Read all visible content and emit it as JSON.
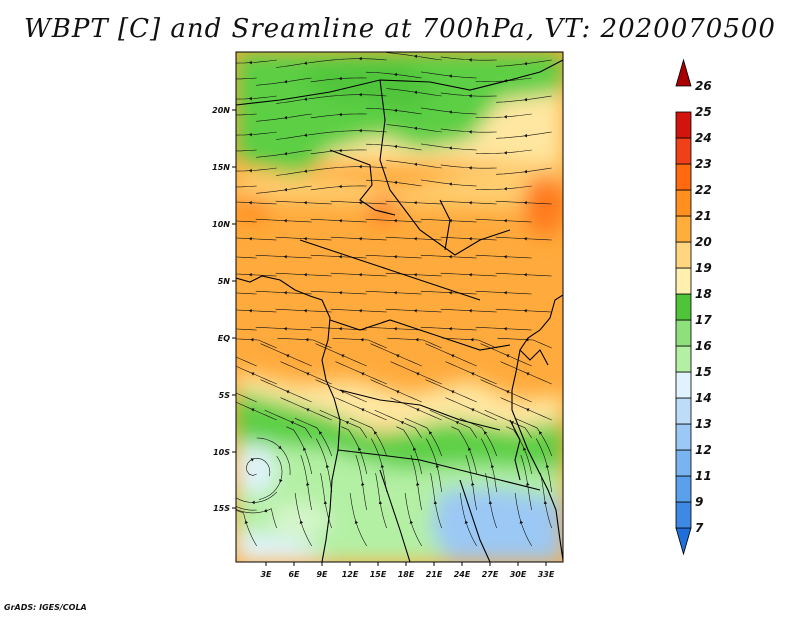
{
  "title": "WBPT [C] and Sreamline at 700hPa, VT: 2020070500",
  "credit": "GrADS: IGES/COLA",
  "map": {
    "lon_ticks": [
      "3E",
      "6E",
      "9E",
      "12E",
      "15E",
      "18E",
      "21E",
      "24E",
      "27E",
      "30E",
      "33E"
    ],
    "lat_ticks": [
      "20N",
      "15N",
      "10N",
      "5N",
      "EQ",
      "5S",
      "10S",
      "15S"
    ]
  },
  "colorbar": {
    "labels": [
      "7",
      "9",
      "11",
      "12",
      "13",
      "14",
      "15",
      "16",
      "17",
      "18",
      "19",
      "20",
      "21",
      "22",
      "23",
      "24",
      "25",
      "26"
    ],
    "colors": [
      "#1e6fd9",
      "#3d89e3",
      "#5aa0ea",
      "#7ab4f0",
      "#9bc8f4",
      "#bddcf8",
      "#e0f3fc",
      "#b4f0a4",
      "#8de07c",
      "#4fc43b",
      "#fff0b0",
      "#ffd581",
      "#ffae3b",
      "#ff8f1e",
      "#ff6a10",
      "#f0401a",
      "#d2140e",
      "#a80000"
    ]
  }
}
